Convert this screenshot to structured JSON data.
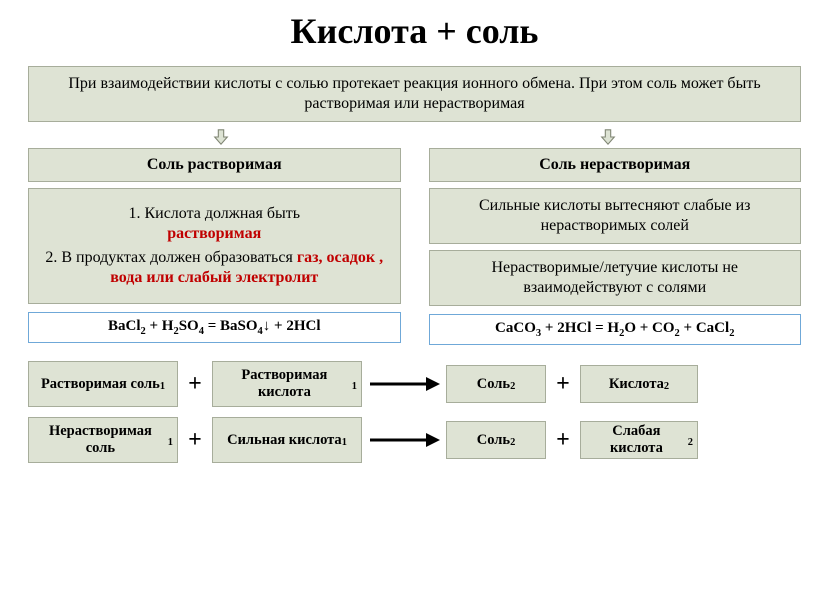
{
  "colors": {
    "box_bg": "#dee3d4",
    "box_border": "#a7ad9b",
    "eq_border": "#6fa8d8",
    "background": "#ffffff",
    "text": "#000000",
    "emphasis": "#c00000",
    "arrow_fill": "#dde3d4",
    "arrow_stroke": "#7f8573",
    "long_arrow": "#000000"
  },
  "fonts": {
    "title_size": 36,
    "body_size": 16,
    "reaction_size": 14.5
  },
  "title": "Кислота + соль",
  "intro": "При взаимодействии кислоты с солью протекает реакция ионного обмена. При этом соль может быть растворимая или нерастворимая",
  "left": {
    "header": "Соль растворимая",
    "rule1_prefix": "1.    Кислота должная быть ",
    "rule1_em": "растворимая",
    "rule2_prefix": "2.    В продуктах должен образоваться ",
    "rule2_em": "газ, осадок , вода или слабый электролит",
    "equation_html": "BaCl<sub>2</sub> + H<sub>2</sub>SO<sub>4</sub> = BaSO<sub>4</sub>↓ + 2HCl"
  },
  "right": {
    "header": "Соль нерастворимая",
    "rule1": "Сильные кислоты вытесняют слабые из нерастворимых солей",
    "rule2": "Нерастворимые/летучие кислоты не взаимодействуют с солями",
    "equation_html": "CaCO<sub>3</sub> + 2HCl = H<sub>2</sub>O + CO<sub>2</sub> + CaCl<sub>2</sub>"
  },
  "reactions": [
    {
      "a_html": "Растворимая соль<span class='sub1'>1</span>",
      "b_html": "Растворимая кислота<span class='sub1'>1</span>",
      "c_html": "Соль<span class='sub1'>2</span>",
      "d_html": "Кислота<span class='sub1'>2</span>"
    },
    {
      "a_html": "Нерастворимая соль<span class='sub1'>1</span>",
      "b_html": "Сильная кислота<span class='sub1'>1</span>",
      "c_html": "Соль<span class='sub1'>2</span>",
      "d_html": "Слабая кислота<span class='sub1'>2</span>"
    }
  ]
}
